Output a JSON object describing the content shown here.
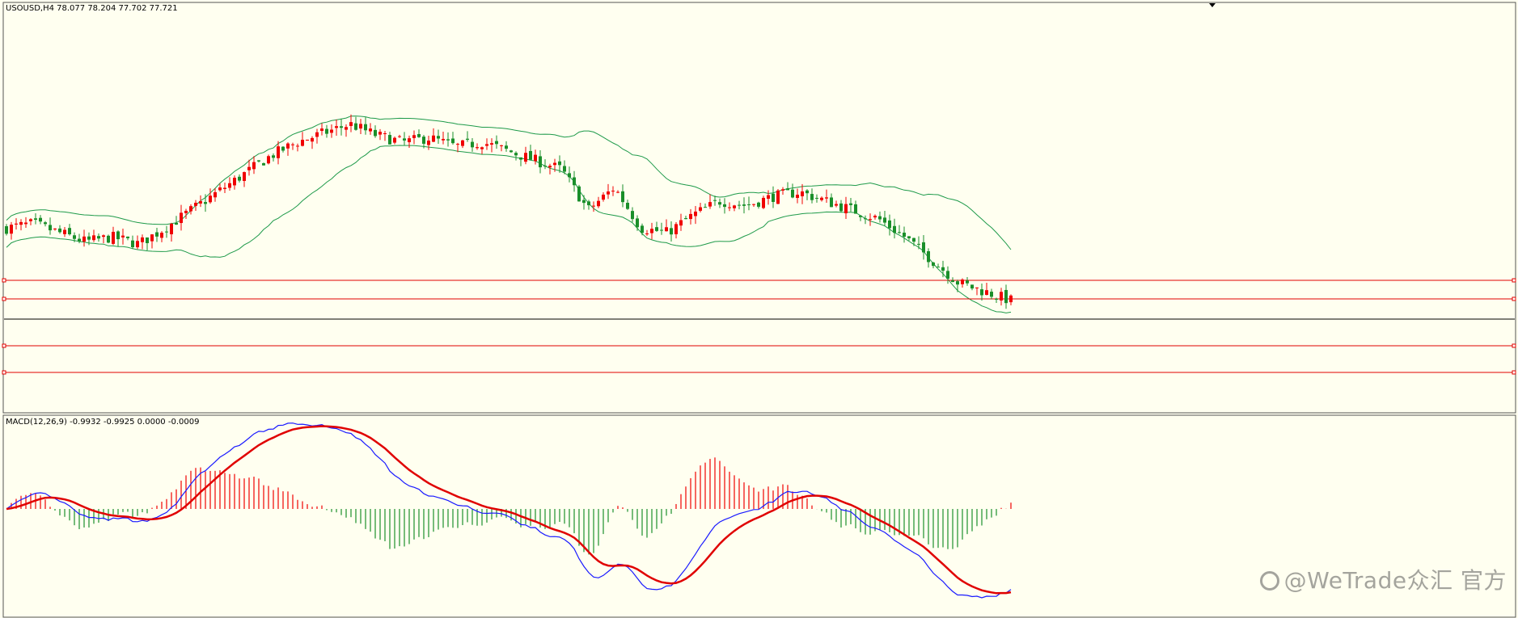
{
  "watermark": "@WeTrade众汇 官方",
  "colors": {
    "bull": "#f00000",
    "bear": "#1a8f2a",
    "bands": "#1e9a4a",
    "macd_signal": "#e00000",
    "macd_line": "#1a1aff",
    "hlines": "#e00000",
    "bg": "#fffff0"
  },
  "chart_data": [
    {
      "type": "candlestick",
      "header": "USOUSD,H4  78.077 78.204 77.702 77.721",
      "symbol": "USOUSD,H4",
      "ohlc_readout": [
        78.077,
        78.204,
        77.702,
        77.721
      ],
      "indicators": [
        "Bollinger Bands"
      ],
      "grid": false,
      "hlines_drawn": 5,
      "trend_profile_close": [
        0.42,
        0.44,
        0.4,
        0.36,
        0.38,
        0.35,
        0.42,
        0.5,
        0.58,
        0.66,
        0.74,
        0.8,
        0.84,
        0.88,
        0.83,
        0.8,
        0.82,
        0.78,
        0.8,
        0.76,
        0.72,
        0.68,
        0.5,
        0.6,
        0.42,
        0.4,
        0.48,
        0.54,
        0.52,
        0.56,
        0.58,
        0.54,
        0.5,
        0.46,
        0.38,
        0.28,
        0.18,
        0.14,
        0.1
      ]
    },
    {
      "type": "macd",
      "header": "MACD(12,26,9) -0.9932 -0.9925 0.0000 -0.0009",
      "params": "12,26,9",
      "values": [
        -0.9932,
        -0.9925,
        0.0,
        -0.0009
      ],
      "series": [
        {
          "type": "histogram"
        },
        {
          "type": "line",
          "role": "macd-line"
        },
        {
          "type": "line",
          "role": "signal-line"
        }
      ]
    }
  ]
}
